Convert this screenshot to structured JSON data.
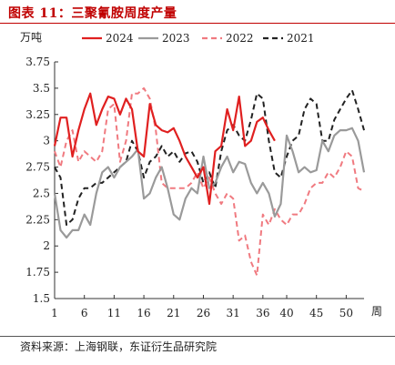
{
  "figure": {
    "title": "图表 11：三聚氰胺周度产量",
    "source": "资料来源：上海钢联，东证衍生品研究院"
  },
  "chart_data": {
    "type": "line",
    "ylabel": "万吨",
    "xlabel": "周",
    "ylim": [
      1.5,
      3.75
    ],
    "yticks": [
      1.5,
      1.75,
      2,
      2.25,
      2.5,
      2.75,
      3,
      3.25,
      3.5,
      3.75
    ],
    "ytick_labels": [
      "1.5",
      "1.75",
      "2",
      "2.25",
      "2.5",
      "2.75",
      "3",
      "3.25",
      "3.5",
      "3.75"
    ],
    "xlim": [
      1,
      53
    ],
    "xticks": [
      1,
      6,
      11,
      16,
      21,
      26,
      31,
      36,
      40,
      45,
      50
    ],
    "xtick_labels": [
      "1",
      "6",
      "11",
      "16",
      "21",
      "26",
      "31",
      "36",
      "40",
      "45",
      "50"
    ],
    "grid": false,
    "legend": "top",
    "series": [
      {
        "name": "2024",
        "color": "#e02020",
        "style": "solid",
        "x": [
          1,
          2,
          3,
          4,
          5,
          6,
          7,
          8,
          9,
          10,
          11,
          12,
          13,
          14,
          15,
          16,
          17,
          18,
          19,
          20,
          21,
          22,
          23,
          24,
          25,
          26,
          27,
          28,
          29,
          30,
          31,
          32,
          33,
          34,
          35,
          36,
          37,
          38
        ],
        "y": [
          2.95,
          3.22,
          3.22,
          2.85,
          3.1,
          3.3,
          3.45,
          3.15,
          3.3,
          3.42,
          3.4,
          3.25,
          3.4,
          3.3,
          2.9,
          2.85,
          3.35,
          3.15,
          3.1,
          3.08,
          3.12,
          3.0,
          2.85,
          2.75,
          2.65,
          2.75,
          2.4,
          2.9,
          2.95,
          3.3,
          3.1,
          3.42,
          2.95,
          3.0,
          3.18,
          3.22,
          3.1,
          3.0
        ]
      },
      {
        "name": "2023",
        "color": "#9a9a9a",
        "style": "solid",
        "x": [
          1,
          2,
          3,
          4,
          5,
          6,
          7,
          8,
          9,
          10,
          11,
          12,
          13,
          14,
          15,
          16,
          17,
          18,
          19,
          20,
          21,
          22,
          23,
          24,
          25,
          26,
          27,
          28,
          29,
          30,
          31,
          32,
          33,
          34,
          35,
          36,
          37,
          38,
          39,
          40,
          41,
          42,
          43,
          44,
          45,
          46,
          47,
          48,
          49,
          50,
          51,
          52,
          53
        ],
        "y": [
          2.5,
          2.15,
          2.08,
          2.15,
          2.15,
          2.3,
          2.2,
          2.5,
          2.7,
          2.75,
          2.65,
          2.75,
          2.8,
          2.85,
          2.92,
          2.45,
          2.5,
          2.65,
          2.75,
          2.55,
          2.3,
          2.25,
          2.45,
          2.55,
          2.5,
          2.85,
          2.55,
          2.6,
          2.75,
          2.85,
          2.7,
          2.8,
          2.78,
          2.6,
          2.5,
          2.6,
          2.5,
          2.28,
          2.4,
          3.05,
          2.9,
          2.7,
          2.75,
          2.7,
          2.72,
          3.0,
          2.9,
          3.05,
          3.1,
          3.1,
          3.12,
          3.0,
          2.7
        ]
      },
      {
        "name": "2022",
        "color": "#f07a80",
        "style": "dashed",
        "x": [
          1,
          2,
          3,
          4,
          5,
          6,
          7,
          8,
          9,
          10,
          11,
          12,
          13,
          14,
          15,
          16,
          17,
          18,
          19,
          20,
          21,
          22,
          23,
          24,
          25,
          26,
          27,
          28,
          29,
          30,
          31,
          32,
          33,
          34,
          35,
          36,
          37,
          38,
          39,
          40,
          41,
          42,
          43,
          44,
          45,
          46,
          47,
          48,
          49,
          50,
          51,
          52,
          53
        ],
        "y": [
          2.9,
          2.75,
          3.0,
          3.1,
          2.8,
          2.9,
          2.85,
          2.8,
          2.9,
          3.3,
          3.35,
          2.8,
          3.0,
          3.45,
          3.45,
          3.5,
          3.4,
          3.1,
          2.6,
          2.55,
          2.55,
          2.55,
          2.55,
          2.6,
          2.7,
          2.55,
          2.65,
          2.5,
          2.4,
          2.5,
          2.45,
          2.05,
          2.1,
          1.85,
          1.72,
          2.3,
          2.2,
          2.35,
          2.25,
          2.2,
          2.3,
          2.3,
          2.4,
          2.55,
          2.6,
          2.6,
          2.7,
          2.65,
          2.75,
          2.9,
          2.85,
          2.55,
          2.52
        ]
      },
      {
        "name": "2021",
        "color": "#222222",
        "style": "dashed",
        "x": [
          1,
          2,
          3,
          4,
          5,
          6,
          7,
          8,
          9,
          10,
          11,
          12,
          13,
          14,
          15,
          16,
          17,
          18,
          19,
          20,
          21,
          22,
          23,
          24,
          25,
          26,
          27,
          28,
          29,
          30,
          31,
          32,
          33,
          34,
          35,
          36,
          37,
          38,
          39,
          40,
          41,
          42,
          43,
          44,
          45,
          46,
          47,
          48,
          49,
          50,
          51,
          52,
          53
        ],
        "y": [
          2.75,
          2.65,
          2.2,
          2.25,
          2.45,
          2.55,
          2.55,
          2.6,
          2.6,
          2.65,
          2.7,
          2.75,
          2.8,
          3.0,
          2.9,
          2.65,
          2.8,
          2.85,
          2.95,
          2.85,
          2.9,
          2.8,
          2.88,
          2.9,
          2.8,
          2.6,
          2.7,
          2.55,
          2.9,
          3.1,
          3.15,
          3.05,
          3.0,
          3.2,
          3.45,
          3.4,
          3.0,
          2.7,
          2.65,
          2.85,
          3.0,
          3.05,
          3.3,
          3.4,
          3.35,
          3.0,
          3.0,
          3.2,
          3.3,
          3.4,
          3.48,
          3.3,
          3.1
        ]
      }
    ]
  }
}
